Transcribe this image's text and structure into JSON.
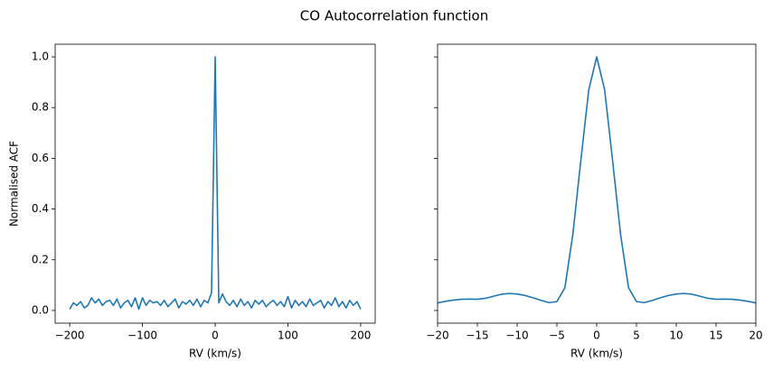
{
  "title": "CO Autocorrelation function",
  "chart_data": [
    {
      "type": "line",
      "xlabel": "RV (km/s)",
      "ylabel": "Normalised ACF",
      "xlim": [
        -220,
        220
      ],
      "ylim": [
        -0.05,
        1.05
      ],
      "xticks": [
        {
          "value": -200,
          "label": "−200"
        },
        {
          "value": -100,
          "label": "−100"
        },
        0,
        100,
        200
      ],
      "yticks": [
        {
          "value": 0,
          "label": "0.0"
        },
        0.2,
        0.4,
        0.6,
        0.8,
        {
          "value": 1,
          "label": "1.0"
        }
      ],
      "x": [
        -200,
        -195,
        -190,
        -185,
        -180,
        -175,
        -170,
        -165,
        -160,
        -155,
        -150,
        -145,
        -140,
        -135,
        -130,
        -125,
        -120,
        -115,
        -110,
        -105,
        -100,
        -95,
        -90,
        -85,
        -80,
        -75,
        -70,
        -65,
        -60,
        -55,
        -50,
        -45,
        -40,
        -35,
        -30,
        -25,
        -20,
        -15,
        -10,
        -5,
        0,
        5,
        10,
        15,
        20,
        25,
        30,
        35,
        40,
        45,
        50,
        55,
        60,
        65,
        70,
        75,
        80,
        85,
        90,
        95,
        100,
        105,
        110,
        115,
        120,
        125,
        130,
        135,
        140,
        145,
        150,
        155,
        160,
        165,
        170,
        175,
        180,
        185,
        190,
        195,
        200
      ],
      "series": [
        {
          "color": "#1f77b4",
          "values": [
            0.005,
            0.03,
            0.02,
            0.035,
            0.01,
            0.02,
            0.05,
            0.03,
            0.045,
            0.02,
            0.035,
            0.04,
            0.02,
            0.045,
            0.01,
            0.03,
            0.04,
            0.015,
            0.05,
            0.005,
            0.05,
            0.02,
            0.04,
            0.03,
            0.035,
            0.02,
            0.04,
            0.015,
            0.03,
            0.045,
            0.01,
            0.035,
            0.025,
            0.04,
            0.02,
            0.045,
            0.015,
            0.04,
            0.03,
            0.07,
            1.0,
            0.03,
            0.065,
            0.035,
            0.02,
            0.04,
            0.015,
            0.045,
            0.02,
            0.035,
            0.01,
            0.04,
            0.025,
            0.04,
            0.015,
            0.03,
            0.04,
            0.02,
            0.035,
            0.015,
            0.055,
            0.01,
            0.04,
            0.02,
            0.035,
            0.015,
            0.045,
            0.02,
            0.03,
            0.04,
            0.01,
            0.035,
            0.02,
            0.05,
            0.015,
            0.035,
            0.01,
            0.04,
            0.02,
            0.035,
            0.005
          ]
        }
      ]
    },
    {
      "type": "line",
      "xlabel": "RV (km/s)",
      "xlim": [
        -20,
        20
      ],
      "ylim": [
        -0.05,
        1.05
      ],
      "xticks": [
        {
          "value": -20,
          "label": "−20"
        },
        {
          "value": -15,
          "label": "−15"
        },
        {
          "value": -10,
          "label": "−10"
        },
        {
          "value": -5,
          "label": "−5"
        },
        0,
        5,
        10,
        15,
        20
      ],
      "yticks": [
        0,
        0.2,
        0.4,
        0.6,
        0.8,
        1
      ],
      "x": [
        -20,
        -19,
        -18,
        -17,
        -16,
        -15,
        -14,
        -13,
        -12,
        -11,
        -10,
        -9,
        -8,
        -7,
        -6,
        -5,
        -4,
        -3,
        -2,
        -1,
        0,
        1,
        2,
        3,
        4,
        5,
        6,
        7,
        8,
        9,
        10,
        11,
        12,
        13,
        14,
        15,
        16,
        17,
        18,
        19,
        20
      ],
      "series": [
        {
          "color": "#1f77b4",
          "values": [
            0.03,
            0.036,
            0.041,
            0.044,
            0.045,
            0.044,
            0.048,
            0.056,
            0.064,
            0.067,
            0.065,
            0.059,
            0.05,
            0.04,
            0.031,
            0.035,
            0.09,
            0.3,
            0.59,
            0.87,
            1.0,
            0.87,
            0.59,
            0.3,
            0.09,
            0.035,
            0.031,
            0.04,
            0.05,
            0.059,
            0.065,
            0.067,
            0.064,
            0.056,
            0.048,
            0.044,
            0.045,
            0.044,
            0.041,
            0.036,
            0.03
          ]
        }
      ]
    }
  ]
}
